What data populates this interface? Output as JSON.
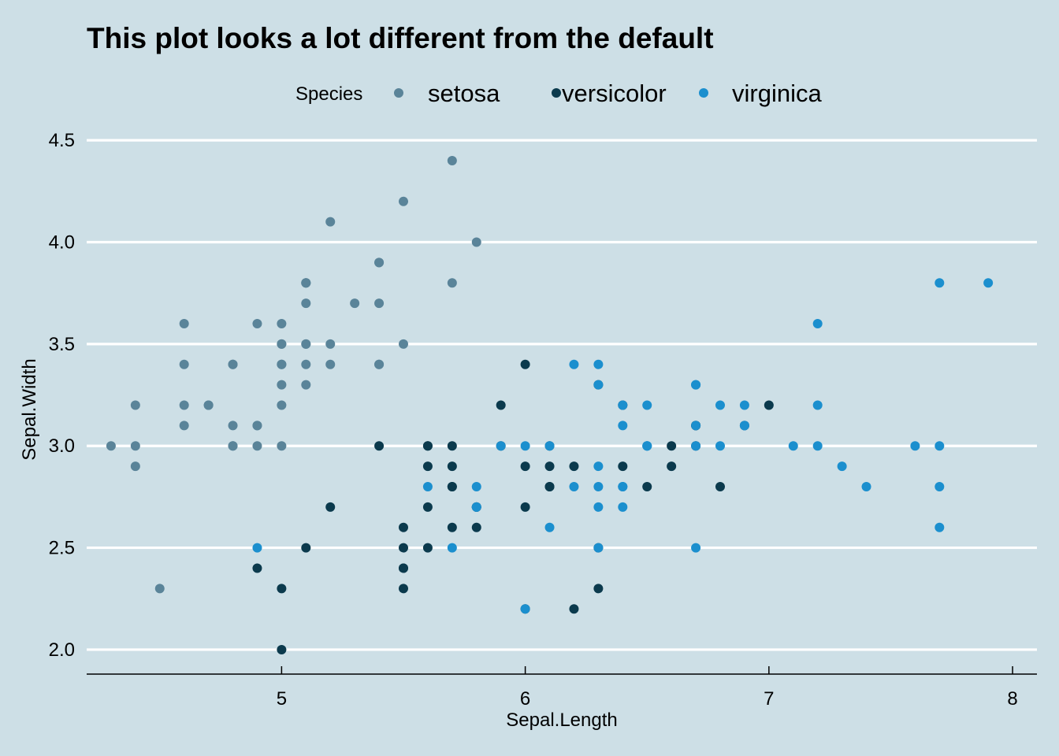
{
  "colors": {
    "background": "#cddfe6",
    "grid": "#ffffff",
    "axis": "#000000",
    "setosa": "#5a8499",
    "versicolor": "#0b3a4d",
    "virginica": "#1b8fce"
  },
  "chart_data": {
    "type": "scatter",
    "title": "This plot looks a lot different from the default",
    "xlabel": "Sepal.Length",
    "ylabel": "Sepal.Width",
    "xlim": [
      4.2,
      8.1
    ],
    "ylim": [
      1.88,
      4.57
    ],
    "xticks": [
      5,
      6,
      7,
      8
    ],
    "xtick_labels": [
      "5",
      "6",
      "7",
      "8"
    ],
    "yticks": [
      2.0,
      2.5,
      3.0,
      3.5,
      4.0,
      4.5
    ],
    "ytick_labels": [
      "2.0",
      "2.5",
      "3.0",
      "3.5",
      "4.0",
      "4.5"
    ],
    "grid": "horizontal major",
    "legend": {
      "title": "Species",
      "position": "top"
    },
    "series": [
      {
        "name": "setosa",
        "color": "#5a8499",
        "points": [
          [
            5.1,
            3.5
          ],
          [
            4.9,
            3.0
          ],
          [
            4.7,
            3.2
          ],
          [
            4.6,
            3.1
          ],
          [
            5.0,
            3.6
          ],
          [
            5.4,
            3.9
          ],
          [
            4.6,
            3.4
          ],
          [
            5.0,
            3.4
          ],
          [
            4.4,
            2.9
          ],
          [
            4.9,
            3.1
          ],
          [
            5.4,
            3.7
          ],
          [
            4.8,
            3.4
          ],
          [
            4.8,
            3.0
          ],
          [
            4.3,
            3.0
          ],
          [
            5.8,
            4.0
          ],
          [
            5.7,
            4.4
          ],
          [
            5.4,
            3.9
          ],
          [
            5.1,
            3.5
          ],
          [
            5.7,
            3.8
          ],
          [
            5.1,
            3.8
          ],
          [
            5.4,
            3.4
          ],
          [
            5.1,
            3.7
          ],
          [
            4.6,
            3.6
          ],
          [
            5.1,
            3.3
          ],
          [
            4.8,
            3.4
          ],
          [
            5.0,
            3.0
          ],
          [
            5.0,
            3.4
          ],
          [
            5.2,
            3.5
          ],
          [
            5.2,
            3.4
          ],
          [
            4.7,
            3.2
          ],
          [
            4.8,
            3.1
          ],
          [
            5.4,
            3.4
          ],
          [
            5.2,
            4.1
          ],
          [
            5.5,
            4.2
          ],
          [
            4.9,
            3.1
          ],
          [
            5.0,
            3.2
          ],
          [
            5.5,
            3.5
          ],
          [
            4.9,
            3.6
          ],
          [
            4.4,
            3.0
          ],
          [
            5.1,
            3.4
          ],
          [
            5.0,
            3.5
          ],
          [
            4.5,
            2.3
          ],
          [
            4.4,
            3.2
          ],
          [
            5.0,
            3.5
          ],
          [
            5.1,
            3.8
          ],
          [
            4.8,
            3.0
          ],
          [
            5.1,
            3.8
          ],
          [
            4.6,
            3.2
          ],
          [
            5.3,
            3.7
          ],
          [
            5.0,
            3.3
          ]
        ]
      },
      {
        "name": "versicolor",
        "color": "#0b3a4d",
        "points": [
          [
            7.0,
            3.2
          ],
          [
            6.4,
            3.2
          ],
          [
            6.9,
            3.1
          ],
          [
            5.5,
            2.3
          ],
          [
            6.5,
            2.8
          ],
          [
            5.7,
            2.8
          ],
          [
            6.3,
            3.3
          ],
          [
            4.9,
            2.4
          ],
          [
            6.6,
            2.9
          ],
          [
            5.2,
            2.7
          ],
          [
            5.0,
            2.0
          ],
          [
            5.9,
            3.0
          ],
          [
            6.0,
            2.2
          ],
          [
            6.1,
            2.9
          ],
          [
            5.6,
            2.9
          ],
          [
            6.7,
            3.1
          ],
          [
            5.6,
            3.0
          ],
          [
            5.8,
            2.7
          ],
          [
            6.2,
            2.2
          ],
          [
            5.6,
            2.5
          ],
          [
            5.9,
            3.2
          ],
          [
            6.1,
            2.8
          ],
          [
            6.3,
            2.5
          ],
          [
            6.1,
            2.8
          ],
          [
            6.4,
            2.9
          ],
          [
            6.6,
            3.0
          ],
          [
            6.8,
            2.8
          ],
          [
            6.7,
            3.0
          ],
          [
            6.0,
            2.9
          ],
          [
            5.7,
            2.6
          ],
          [
            5.5,
            2.4
          ],
          [
            5.5,
            2.4
          ],
          [
            5.8,
            2.7
          ],
          [
            6.0,
            2.7
          ],
          [
            5.4,
            3.0
          ],
          [
            6.0,
            3.4
          ],
          [
            6.7,
            3.1
          ],
          [
            6.3,
            2.3
          ],
          [
            5.6,
            3.0
          ],
          [
            5.5,
            2.5
          ],
          [
            5.5,
            2.6
          ],
          [
            6.1,
            3.0
          ],
          [
            5.8,
            2.6
          ],
          [
            5.0,
            2.3
          ],
          [
            5.6,
            2.7
          ],
          [
            5.7,
            3.0
          ],
          [
            5.7,
            2.9
          ],
          [
            6.2,
            2.9
          ],
          [
            5.1,
            2.5
          ],
          [
            5.7,
            2.8
          ]
        ]
      },
      {
        "name": "virginica",
        "color": "#1b8fce",
        "points": [
          [
            6.3,
            3.3
          ],
          [
            5.8,
            2.7
          ],
          [
            7.1,
            3.0
          ],
          [
            6.3,
            2.9
          ],
          [
            6.5,
            3.0
          ],
          [
            7.6,
            3.0
          ],
          [
            4.9,
            2.5
          ],
          [
            7.3,
            2.9
          ],
          [
            6.7,
            2.5
          ],
          [
            7.2,
            3.6
          ],
          [
            6.5,
            3.2
          ],
          [
            6.4,
            2.7
          ],
          [
            6.8,
            3.0
          ],
          [
            5.7,
            2.5
          ],
          [
            5.8,
            2.8
          ],
          [
            6.4,
            3.2
          ],
          [
            6.5,
            3.0
          ],
          [
            7.7,
            3.8
          ],
          [
            7.7,
            2.6
          ],
          [
            6.0,
            2.2
          ],
          [
            6.9,
            3.2
          ],
          [
            5.6,
            2.8
          ],
          [
            7.7,
            2.8
          ],
          [
            6.3,
            2.7
          ],
          [
            6.7,
            3.3
          ],
          [
            7.2,
            3.2
          ],
          [
            6.2,
            2.8
          ],
          [
            6.1,
            3.0
          ],
          [
            6.4,
            2.8
          ],
          [
            7.2,
            3.0
          ],
          [
            7.4,
            2.8
          ],
          [
            7.9,
            3.8
          ],
          [
            6.4,
            2.8
          ],
          [
            6.3,
            2.8
          ],
          [
            6.1,
            2.6
          ],
          [
            7.7,
            3.0
          ],
          [
            6.3,
            3.4
          ],
          [
            6.4,
            3.1
          ],
          [
            6.0,
            3.0
          ],
          [
            6.9,
            3.1
          ],
          [
            6.7,
            3.1
          ],
          [
            6.9,
            3.1
          ],
          [
            5.8,
            2.7
          ],
          [
            6.8,
            3.2
          ],
          [
            6.7,
            3.3
          ],
          [
            6.7,
            3.0
          ],
          [
            6.3,
            2.5
          ],
          [
            6.5,
            3.0
          ],
          [
            6.2,
            3.4
          ],
          [
            5.9,
            3.0
          ]
        ]
      }
    ]
  }
}
